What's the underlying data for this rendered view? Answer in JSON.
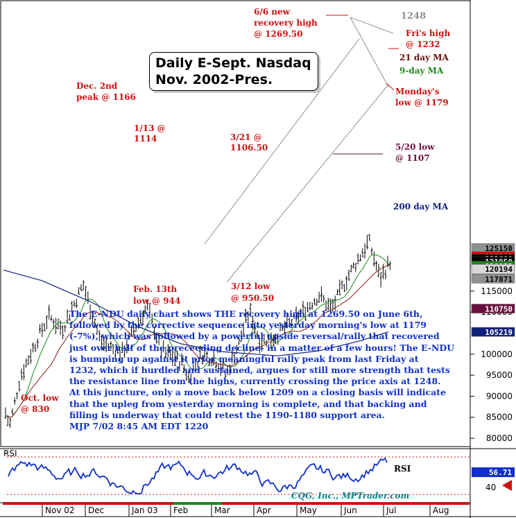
{
  "chart_data": {
    "type": "ohlc",
    "title": "Daily E-Sept. Nasdaq",
    "subtitle": "Nov. 2002-Pres.",
    "ylabel": "",
    "xlabel": "",
    "ylim": [
      76000,
      128500
    ],
    "y_ticks": [
      "115000",
      "110000",
      "100000",
      "95000",
      "90000",
      "85000",
      "80000"
    ],
    "x_ticks": [
      "Nov 02",
      "Dec",
      "Jan 03",
      "Feb",
      "Mar",
      "Apr",
      "May",
      "Jun",
      "Jul",
      "Aug"
    ],
    "price_badges": [
      {
        "label": "125150",
        "value": 125150,
        "bg": "#909090",
        "fg": "#000000"
      },
      {
        "label": "123200",
        "value": 123200,
        "bg": "#e00000",
        "fg": "#ffffff"
      },
      {
        "label": "122600",
        "value": 122600,
        "bg": "#000000",
        "fg": "#ffffff"
      },
      {
        "label": "121950",
        "value": 121950,
        "bg": "#000000",
        "fg": "#ffffff"
      },
      {
        "label": "120933",
        "value": 120933,
        "bg": "#1a8a1a",
        "fg": "#ffffff"
      },
      {
        "label": "120194",
        "value": 120194,
        "bg": "#d8d8d8",
        "fg": "#000000"
      },
      {
        "label": "117871",
        "value": 117871,
        "bg": "#909090",
        "fg": "#000000"
      },
      {
        "label": "110750",
        "value": 110750,
        "bg": "#6a1040",
        "fg": "#ffffff"
      },
      {
        "label": "105219",
        "value": 105219,
        "bg": "#10207a",
        "fg": "#ffffff"
      }
    ],
    "key_points": [
      {
        "label": "Oct. low",
        "value": 83000
      },
      {
        "label": "Dec. 2nd peak",
        "value": 116600
      },
      {
        "label": "1/13",
        "value": 111400
      },
      {
        "label": "Feb. 13th low",
        "value": 94400
      },
      {
        "label": "3/12 low",
        "value": 95050
      },
      {
        "label": "3/21",
        "value": 110650
      },
      {
        "label": "5/20 low",
        "value": 110700
      },
      {
        "label": "6/6 new recovery high",
        "value": 126950
      },
      {
        "label": "Monday's low",
        "value": 117900
      },
      {
        "label": "Fri's high",
        "value": 123200
      }
    ],
    "series": [
      {
        "name": "9-day MA",
        "color": "#1a8a1a"
      },
      {
        "name": "21 day MA",
        "color": "#8b1a1a"
      },
      {
        "name": "200 day MA",
        "color": "#10207a"
      }
    ],
    "rsi": {
      "label": "RSI",
      "value": "56.71",
      "level": "40"
    }
  },
  "annotations": {
    "oct_low": [
      "Oct. low",
      "@ 830"
    ],
    "dec_peak": [
      "Dec. 2nd",
      "peak @ 1166"
    ],
    "jan13": [
      "1/13 @",
      "1114"
    ],
    "feb13": [
      "Feb. 13th",
      "low @ 944"
    ],
    "mar12": [
      "3/12 low",
      "@ 950.50"
    ],
    "mar21": [
      "3/21 @",
      "1106.50"
    ],
    "may20": [
      "5/20 low",
      "@ 1107"
    ],
    "jun6": [
      "6/6 new",
      "recovery high",
      "@ 1269.50"
    ],
    "level_1248": "1248",
    "fri_high": [
      "Fri's high",
      "@ 1232"
    ],
    "ma21": "21 day MA",
    "ma9": "9-day MA",
    "monday_low": [
      "Monday's",
      "low @ 1179"
    ],
    "ma200": "200 day MA"
  },
  "title_box": {
    "line1": "Daily E-Sept. Nasdaq",
    "line2": "Nov. 2002-Pres."
  },
  "commentary": "The E-NDU daily chart shows THE recovery high at 1269.50 on June 6th,\nfollowed by the corrective sequence into yesterday morning's low at 1179\n(-7%), which was followed by a powerful upside reversal/rally that recovered\njust over half of the preceeding decline- in a matter of a few hours!  The E-NDU\nis bumping up against it prior meaningful rally peak from last Friday at\n1232, which if hurdled and sustained, argues for still more strength that tests\nthe resistance line from the highs, currently crossing the price axis at 1248.\nAt this juncture, only a move back below 1209 on a closing basis will indicate\nthat the upleg from yesterday morning is complete, and that backing and\nfilling is underway that could retest the 1190-1180 support area.\nMJP 7/02 8:45 AM EDT  1220",
  "credit": "CQG, Inc., MPTrader.com",
  "colors": {
    "annotation": "#d01010",
    "commentary": "#1030c8",
    "price_bar": "#000000",
    "resistance_channel": "#909090"
  }
}
